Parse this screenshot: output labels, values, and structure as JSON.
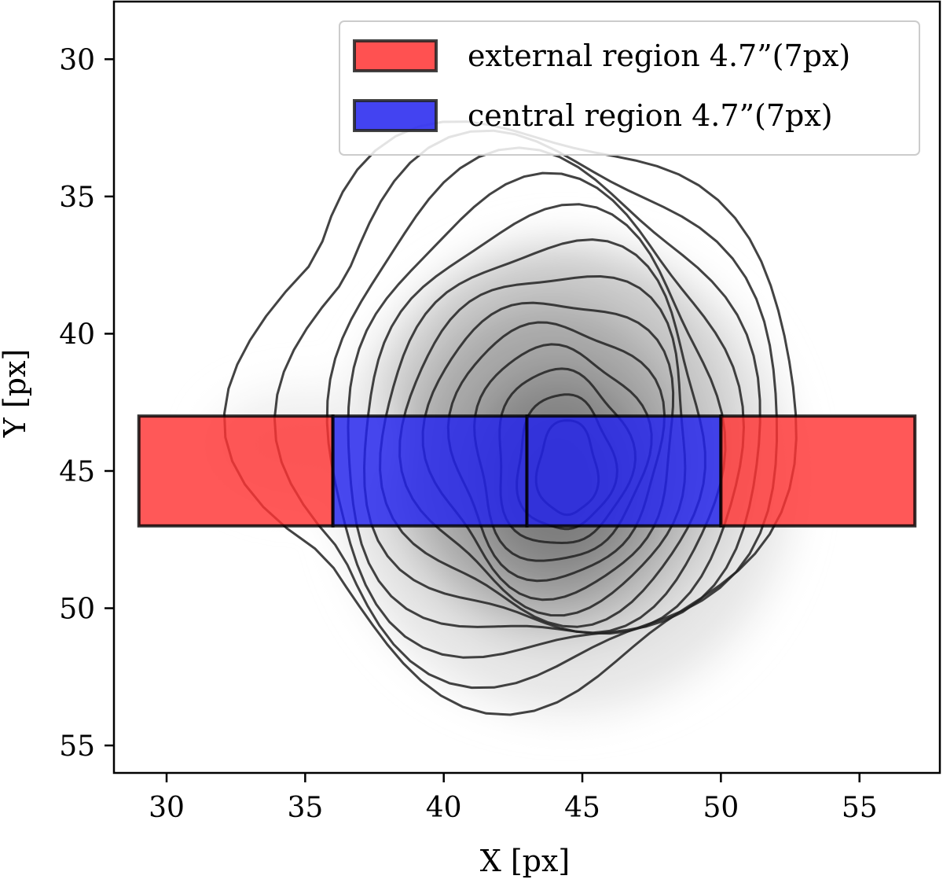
{
  "chart_data": {
    "type": "contour",
    "xlabel": "X [px]",
    "ylabel": "Y [px]",
    "xlim": [
      28.1,
      57.9
    ],
    "ylim": [
      56.0,
      27.9
    ],
    "y_inverted": true,
    "xticks": [
      30,
      35,
      40,
      45,
      50,
      55
    ],
    "yticks": [
      30,
      35,
      40,
      45,
      50,
      55
    ],
    "xtick_labels": [
      "30",
      "35",
      "40",
      "45",
      "50",
      "55"
    ],
    "ytick_labels": [
      "30",
      "35",
      "40",
      "45",
      "50",
      "55"
    ],
    "legend": {
      "location": "top-right",
      "entries": [
        {
          "label": "external region 4.7”(7px)",
          "color": "#ff3333"
        },
        {
          "label": "central region 4.7”(7px)",
          "color": "#2222ee"
        }
      ]
    },
    "regions": [
      {
        "name": "external-left",
        "type": "external",
        "x0": 29,
        "x1": 36,
        "y0": 43,
        "y1": 47,
        "color": "#ff3333"
      },
      {
        "name": "central-left",
        "type": "central",
        "x0": 36,
        "x1": 43,
        "y0": 43,
        "y1": 47,
        "color": "#2222ee"
      },
      {
        "name": "central-right",
        "type": "central",
        "x0": 43,
        "x1": 50,
        "y0": 43,
        "y1": 47,
        "color": "#2222ee"
      },
      {
        "name": "external-right",
        "type": "external",
        "x0": 50,
        "x1": 57,
        "y0": 43,
        "y1": 47,
        "color": "#ff3333"
      }
    ],
    "source_center": [
      44.4,
      45.2
    ],
    "contour_levels": 13,
    "contour_color": "#222222",
    "background_cmap": "greys"
  }
}
